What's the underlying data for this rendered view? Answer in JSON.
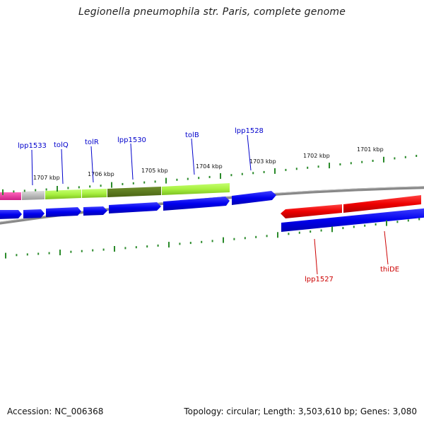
{
  "title": "Legionella pneumophila str. Paris, complete genome",
  "footer": {
    "accession": "Accession: NC_006368",
    "topology": "Topology: circular; Length: 3,503,610 bp; Genes: 3,080"
  },
  "colors": {
    "forward_gene": "#0000ee",
    "reverse_gene": "#ee0000",
    "highlight_light": "#a8f040",
    "highlight_dark": "#5a7a1c",
    "magenta_feature": "#ee3399",
    "grey_feature": "#bbbbbb",
    "backbone": "#888888",
    "tick": "#2a8a2a",
    "forward_label": "#0000cc",
    "reverse_label": "#cc0000",
    "kbp_label": "#111111"
  },
  "kbp_labels": [
    "1707 kbp",
    "1706 kbp",
    "1705 kbp",
    "1704 kbp",
    "1703 kbp",
    "1702 kbp",
    "1701 kbp"
  ],
  "gene_labels_top": [
    "lpp1533",
    "tolQ",
    "tolR",
    "lpp1530",
    "tolB",
    "lpp1528"
  ],
  "gene_labels_bottom": [
    "lpp1527",
    "thiDE"
  ]
}
